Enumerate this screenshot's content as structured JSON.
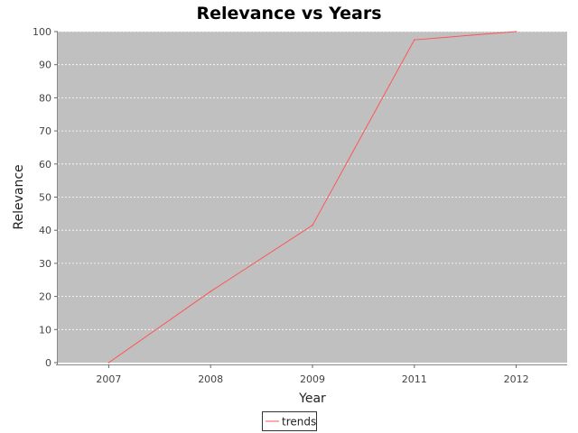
{
  "chart_data": {
    "type": "line",
    "title": "Relevance vs Years",
    "xlabel": "Year",
    "ylabel": "Relevance",
    "categories": [
      "2007",
      "2008",
      "2009",
      "2011",
      "2012"
    ],
    "series": [
      {
        "name": "trends",
        "values": [
          0,
          21.5,
          41.5,
          97.5,
          100
        ]
      }
    ],
    "ylim": [
      0,
      100
    ],
    "yticks": [
      0,
      10,
      20,
      30,
      40,
      50,
      60,
      70,
      80,
      90,
      100
    ],
    "grid": true,
    "legend_position": "bottom",
    "colors": {
      "plot_background": "#c0c0c0",
      "series": "#ff5555",
      "grid": "#ffffff"
    }
  }
}
